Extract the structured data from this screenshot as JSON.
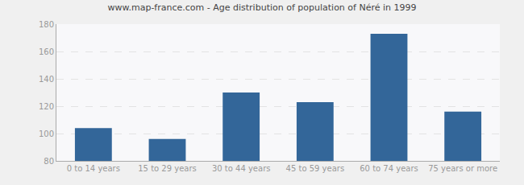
{
  "chart_data": {
    "type": "bar",
    "title": "www.map-france.com - Age distribution of population of Néré in 1999",
    "categories": [
      "0 to 14 years",
      "15 to 29 years",
      "30 to 44 years",
      "45 to 59 years",
      "60 to 74 years",
      "75 years or more"
    ],
    "values": [
      104,
      96,
      130,
      123,
      173,
      116
    ],
    "color": "#336699",
    "ylim": [
      80,
      180
    ],
    "yticks": [
      80,
      100,
      120,
      140,
      160,
      180
    ],
    "grid": true
  }
}
